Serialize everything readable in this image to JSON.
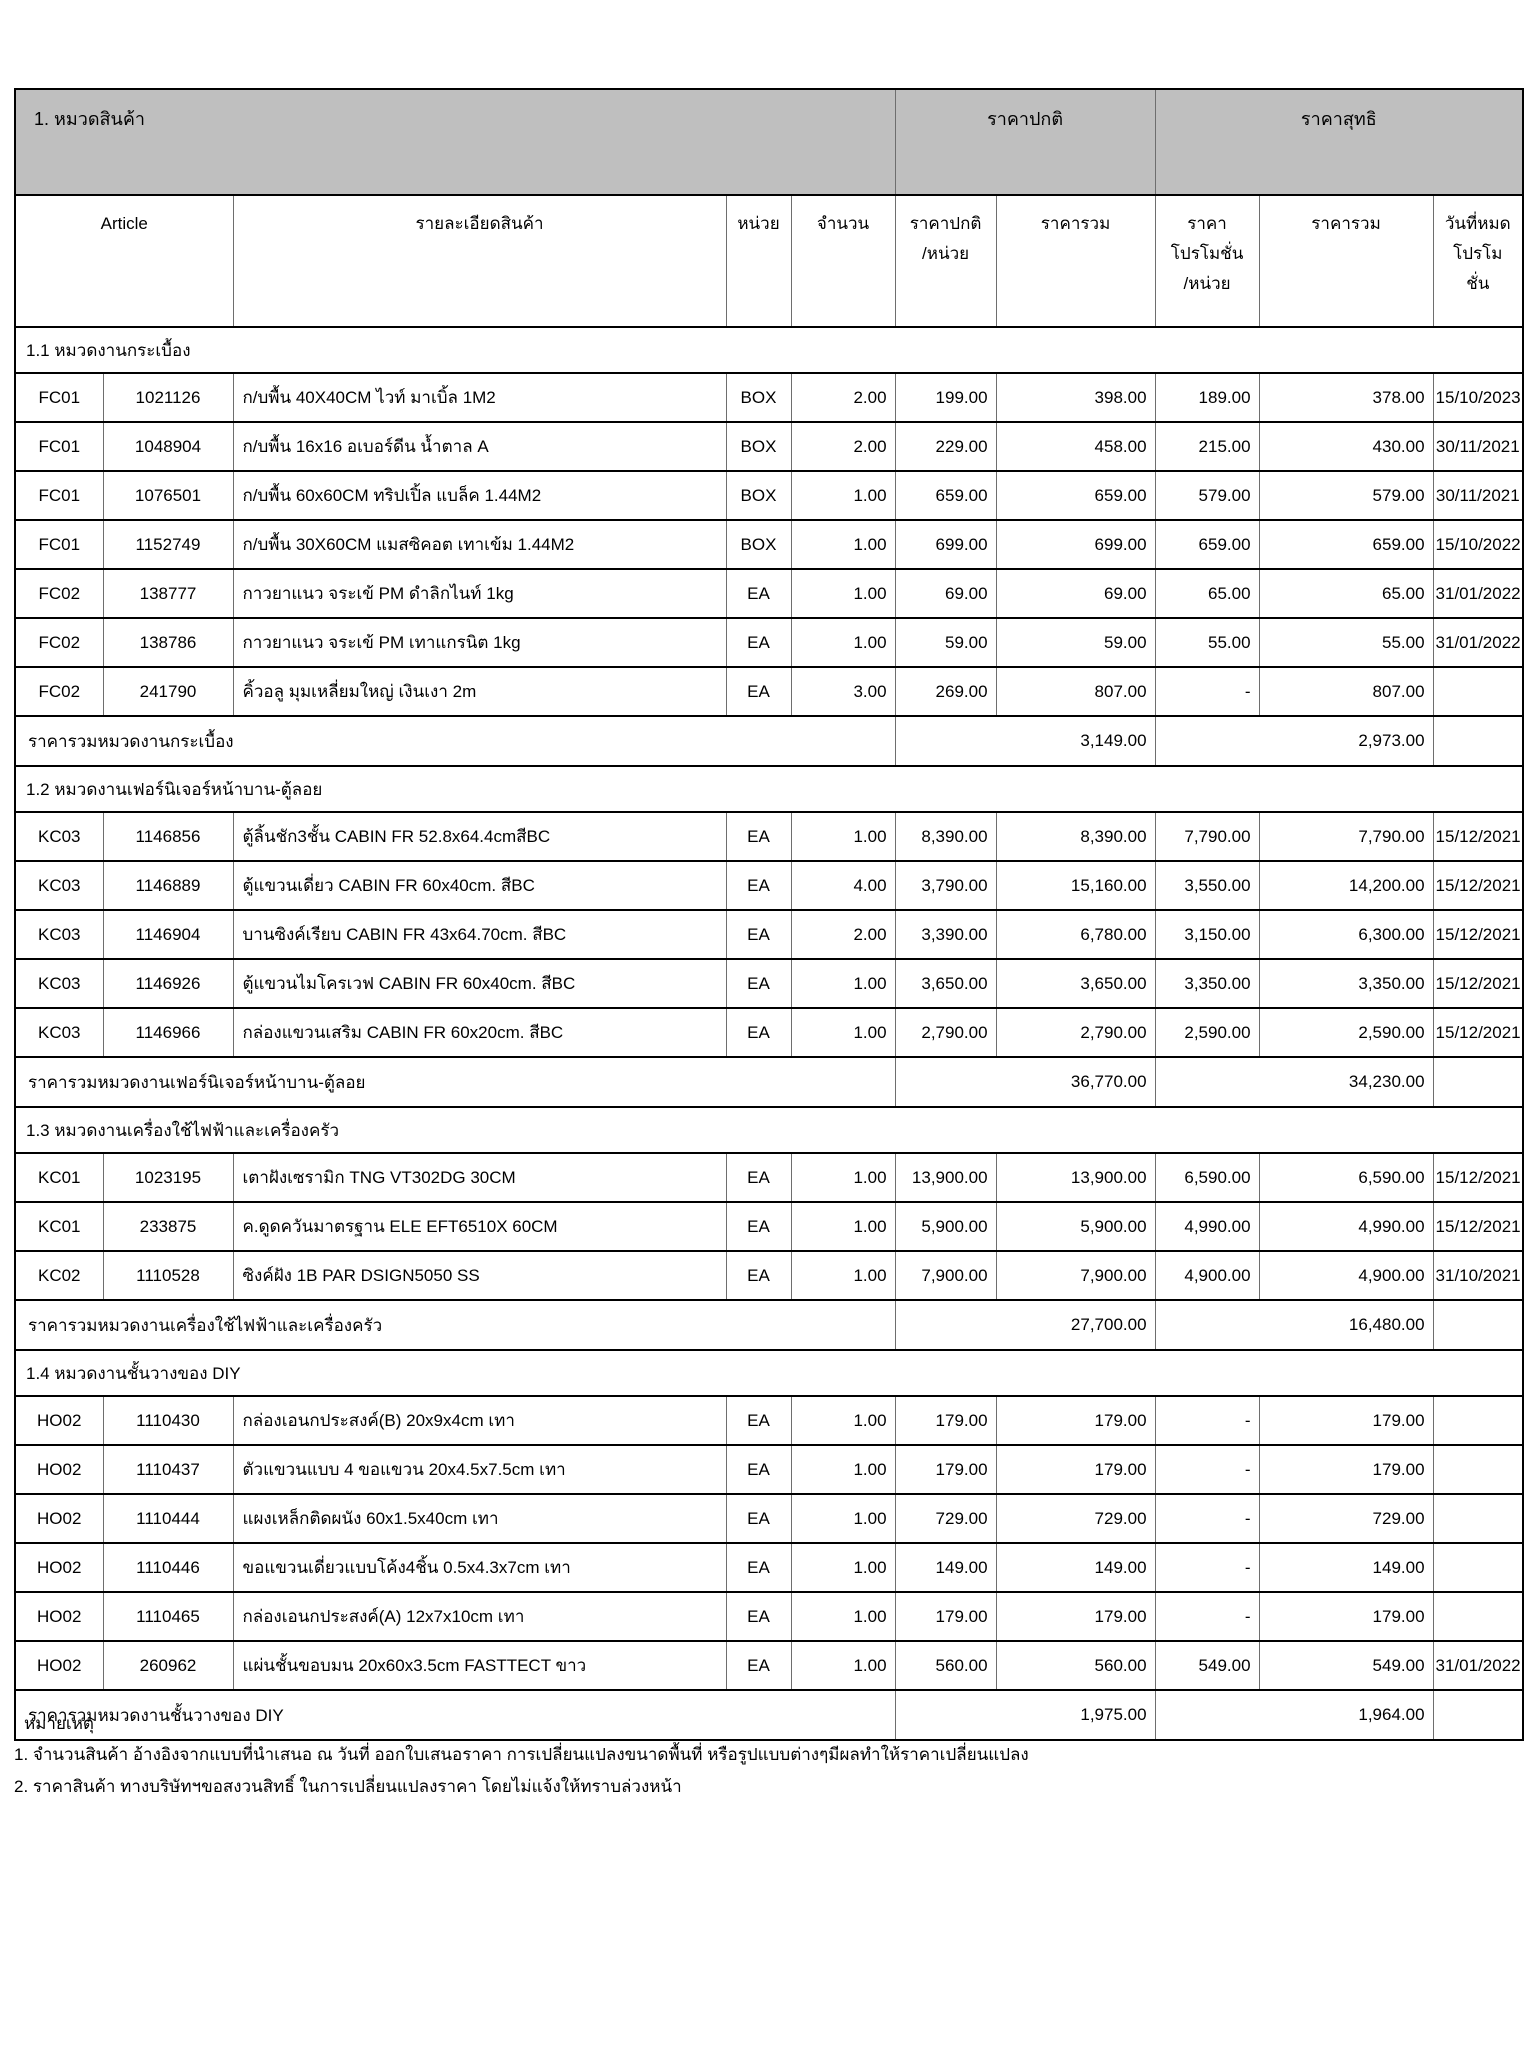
{
  "colors": {
    "header_bg": "#bfbfbf",
    "border": "#000000",
    "grid_line": "#6e6e6e"
  },
  "table": {
    "group_header": {
      "category_label": "1. หมวดสินค้า",
      "normal_price_label": "ราคาปกติ",
      "net_price_label": "ราคาสุทธิ"
    },
    "columns": [
      "Article",
      "รายละเอียดสินค้า",
      "หน่วย",
      "จำนวน",
      "ราคาปกติ\n/หน่วย",
      "ราคารวม",
      "ราคา\nโปรโมชั่น\n/หน่วย",
      "ราคารวม",
      "วันที่หมด\nโปรโมชั่น"
    ],
    "sections": [
      {
        "title": "1.1 หมวดงานกระเบื้อง",
        "rows": [
          [
            "FC01",
            "1021126",
            "ก/บพื้น 40X40CM ไวท์ มาเบิ้ล 1M2",
            "BOX",
            "2.00",
            "199.00",
            "398.00",
            "189.00",
            "378.00",
            "15/10/2023"
          ],
          [
            "FC01",
            "1048904",
            "ก/บพื้น 16x16 อเบอร์ดีน น้ำตาล A",
            "BOX",
            "2.00",
            "229.00",
            "458.00",
            "215.00",
            "430.00",
            "30/11/2021"
          ],
          [
            "FC01",
            "1076501",
            "ก/บพื้น  60x60CM ทริปเปิ้ล แบล็ค 1.44M2",
            "BOX",
            "1.00",
            "659.00",
            "659.00",
            "579.00",
            "579.00",
            "30/11/2021"
          ],
          [
            "FC01",
            "1152749",
            "ก/บพื้น 30X60CM แมสซิคอต เทาเข้ม 1.44M2",
            "BOX",
            "1.00",
            "699.00",
            "699.00",
            "659.00",
            "659.00",
            "15/10/2022"
          ],
          [
            "FC02",
            "138777",
            "กาวยาแนว จระเข้ PM ดำลิกไนท์ 1kg",
            "EA",
            "1.00",
            "69.00",
            "69.00",
            "65.00",
            "65.00",
            "31/01/2022"
          ],
          [
            "FC02",
            "138786",
            "กาวยาแนว จระเข้ PM เทาแกรนิต 1kg",
            "EA",
            "1.00",
            "59.00",
            "59.00",
            "55.00",
            "55.00",
            "31/01/2022"
          ],
          [
            "FC02",
            "241790",
            "คิ้วอลู มุมเหลี่ยมใหญ่ เงินเงา 2m",
            "EA",
            "3.00",
            "269.00",
            "807.00",
            "-",
            "807.00",
            ""
          ]
        ],
        "subtotal": {
          "label": "ราคารวมหมวดงานกระเบื้อง",
          "normal_total": "3,149.00",
          "net_total": "2,973.00"
        }
      },
      {
        "title": "1.2 หมวดงานเฟอร์นิเจอร์หน้าบาน-ตู้ลอย",
        "rows": [
          [
            "KC03",
            "1146856",
            "ตู้ลิ้นชัก3ชั้น CABIN FR 52.8x64.4cmสีBC",
            "EA",
            "1.00",
            "8,390.00",
            "8,390.00",
            "7,790.00",
            "7,790.00",
            "15/12/2021"
          ],
          [
            "KC03",
            "1146889",
            "ตู้แขวนเดี่ยว CABIN FR 60x40cm. สีBC",
            "EA",
            "4.00",
            "3,790.00",
            "15,160.00",
            "3,550.00",
            "14,200.00",
            "15/12/2021"
          ],
          [
            "KC03",
            "1146904",
            "บานซิงค์เรียบ CABIN FR 43x64.70cm. สีBC",
            "EA",
            "2.00",
            "3,390.00",
            "6,780.00",
            "3,150.00",
            "6,300.00",
            "15/12/2021"
          ],
          [
            "KC03",
            "1146926",
            "ตู้แขวนไมโครเวฟ CABIN FR 60x40cm. สีBC",
            "EA",
            "1.00",
            "3,650.00",
            "3,650.00",
            "3,350.00",
            "3,350.00",
            "15/12/2021"
          ],
          [
            "KC03",
            "1146966",
            "กล่องแขวนเสริม CABIN FR 60x20cm. สีBC",
            "EA",
            "1.00",
            "2,790.00",
            "2,790.00",
            "2,590.00",
            "2,590.00",
            "15/12/2021"
          ]
        ],
        "subtotal": {
          "label": "ราคารวมหมวดงานเฟอร์นิเจอร์หน้าบาน-ตู้ลอย",
          "normal_total": "36,770.00",
          "net_total": "34,230.00"
        }
      },
      {
        "title": "1.3 หมวดงานเครื่องใช้ไฟฟ้าและเครื่องครัว",
        "rows": [
          [
            "KC01",
            "1023195",
            "เตาฝังเซรามิก TNG VT302DG 30CM",
            "EA",
            "1.00",
            "13,900.00",
            "13,900.00",
            "6,590.00",
            "6,590.00",
            "15/12/2021"
          ],
          [
            "KC01",
            "233875",
            "ค.ดูดควันมาตรฐาน ELE EFT6510X  60CM",
            "EA",
            "1.00",
            "5,900.00",
            "5,900.00",
            "4,990.00",
            "4,990.00",
            "15/12/2021"
          ],
          [
            "KC02",
            "1110528",
            "ซิงค์ฝัง 1B PAR DSIGN5050 SS",
            "EA",
            "1.00",
            "7,900.00",
            "7,900.00",
            "4,900.00",
            "4,900.00",
            "31/10/2021"
          ]
        ],
        "subtotal": {
          "label": "ราคารวมหมวดงานเครื่องใช้ไฟฟ้าและเครื่องครัว",
          "normal_total": "27,700.00",
          "net_total": "16,480.00"
        }
      },
      {
        "title": "1.4 หมวดงานชั้นวางของ DIY",
        "rows": [
          [
            "HO02",
            "1110430",
            "กล่องเอนกประสงค์(B) 20x9x4cm เทา",
            "EA",
            "1.00",
            "179.00",
            "179.00",
            "-",
            "179.00",
            ""
          ],
          [
            "HO02",
            "1110437",
            "ตัวแขวนแบบ 4  ขอแขวน 20x4.5x7.5cm เทา",
            "EA",
            "1.00",
            "179.00",
            "179.00",
            "-",
            "179.00",
            ""
          ],
          [
            "HO02",
            "1110444",
            "แผงเหล็กติดผนัง 60x1.5x40cm เทา",
            "EA",
            "1.00",
            "729.00",
            "729.00",
            "-",
            "729.00",
            ""
          ],
          [
            "HO02",
            "1110446",
            "ขอแขวนเดี่ยวแบบโค้ง4ชิ้น 0.5x4.3x7cm เทา",
            "EA",
            "1.00",
            "149.00",
            "149.00",
            "-",
            "149.00",
            ""
          ],
          [
            "HO02",
            "1110465",
            "กล่องเอนกประสงค์(A) 12x7x10cm เทา",
            "EA",
            "1.00",
            "179.00",
            "179.00",
            "-",
            "179.00",
            ""
          ],
          [
            "HO02",
            "260962",
            "แผ่นชั้นขอบมน 20x60x3.5cm FASTTECT ขาว",
            "EA",
            "1.00",
            "560.00",
            "560.00",
            "549.00",
            "549.00",
            "31/01/2022"
          ]
        ],
        "subtotal": {
          "label": "ราคารวมหมวดงานชั้นวางของ DIY",
          "normal_total": "1,975.00",
          "net_total": "1,964.00"
        }
      }
    ]
  },
  "notes": {
    "title": "หมายเหตุ",
    "items": [
      "1. จำนวนสินค้า อ้างอิงจากแบบที่นำเสนอ ณ วันที่ ออกใบเสนอราคา การเปลี่ยนแปลงขนาดพื้นที่ หรือรูปแบบต่างๆมีผลทำให้ราคาเปลี่ยนแปลง",
      "2. ราคาสินค้า ทางบริษัทฯขอสงวนสิทธิ์ ในการเปลี่ยนแปลงราคา โดยไม่แจ้งให้ทราบล่วงหน้า"
    ]
  }
}
